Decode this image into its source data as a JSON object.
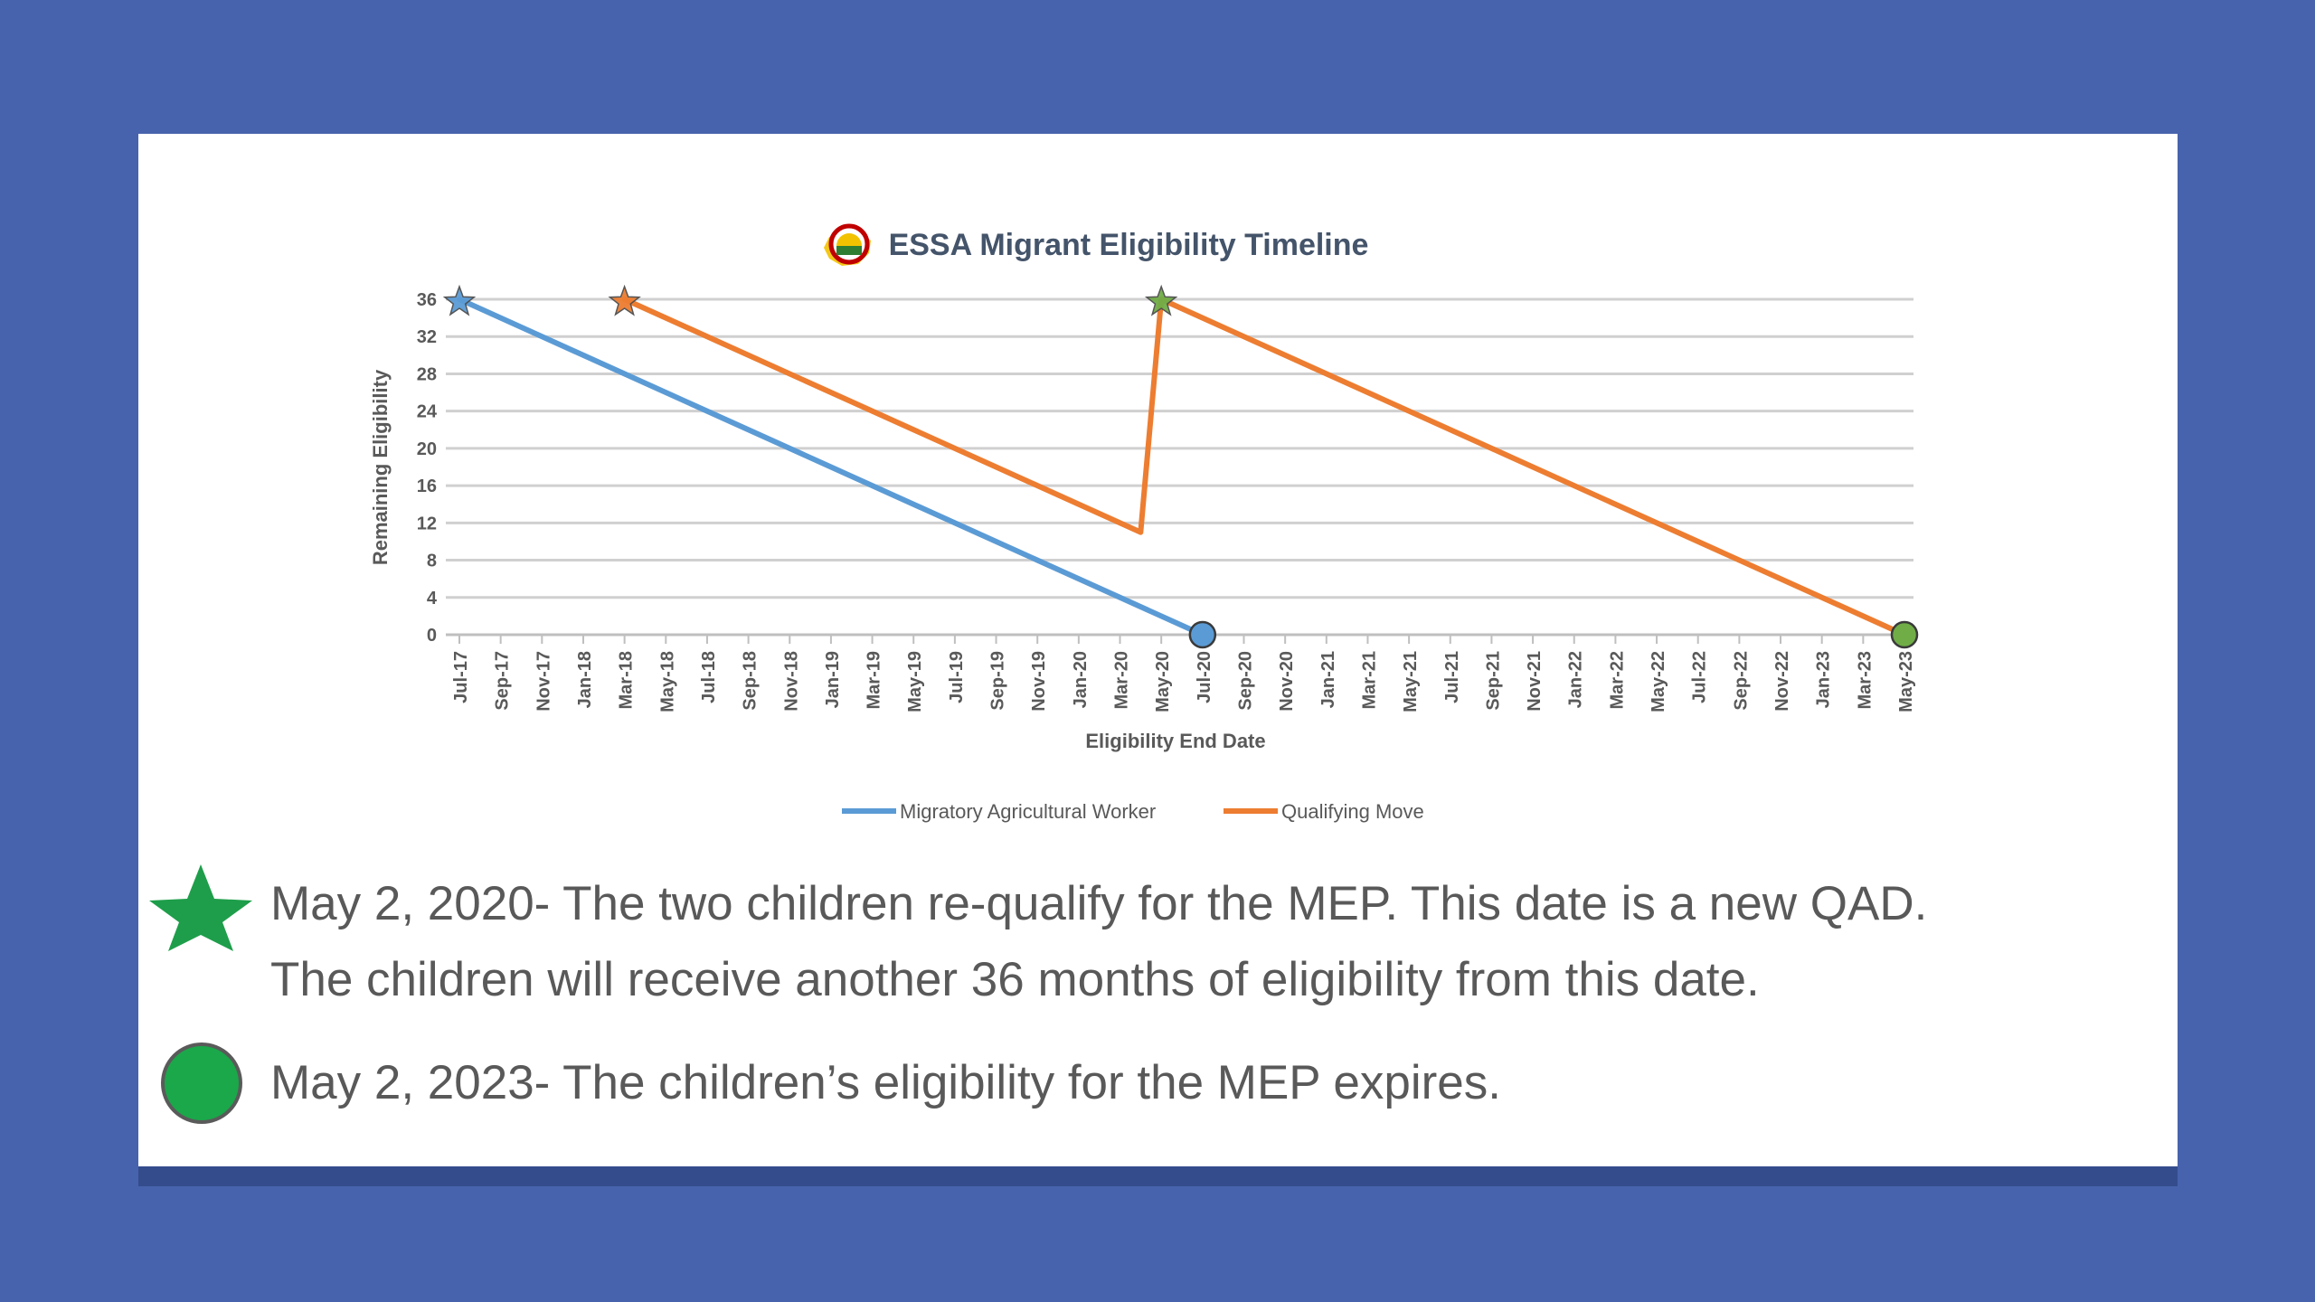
{
  "colors": {
    "background": "#4763ad",
    "slide": "#ffffff",
    "migratory_series": "#5b9bd5",
    "move_series": "#ed7d31",
    "start_star_blue": "#5b9bd5",
    "start_star_orange": "#ed7d31",
    "requalify_star": "#70ad47",
    "end_marker_blue": "#5b9bd5",
    "end_marker_green": "#70ad47",
    "legend_star": "#1e9e4a",
    "legend_circle": "#1aa84a",
    "text": "#595959"
  },
  "chart_data": {
    "type": "line",
    "title": "ESSA Migrant Eligibility Timeline",
    "xlabel": "Eligibility End Date",
    "ylabel": "Remaining Eligibility",
    "ylim": [
      0,
      36
    ],
    "yticks": [
      0,
      4,
      8,
      12,
      16,
      20,
      24,
      28,
      32,
      36
    ],
    "grid": true,
    "legend_position": "bottom",
    "categories": [
      "Jul-17",
      "Sep-17",
      "Nov-17",
      "Jan-18",
      "Mar-18",
      "May-18",
      "Jul-18",
      "Sep-18",
      "Nov-18",
      "Jan-19",
      "Mar-19",
      "May-19",
      "Jul-19",
      "Sep-19",
      "Nov-19",
      "Jan-20",
      "Mar-20",
      "May-20",
      "Jul-20",
      "Sep-20",
      "Nov-20",
      "Jan-21",
      "Mar-21",
      "May-21",
      "Jul-21",
      "Sep-21",
      "Nov-21",
      "Jan-22",
      "Mar-22",
      "May-22",
      "Jul-22",
      "Sep-22",
      "Nov-22",
      "Jan-23",
      "Mar-23",
      "May-23"
    ],
    "series": [
      {
        "name": "Migratory Agricultural Worker",
        "points": [
          [
            "2017-07",
            36
          ],
          [
            "2020-07",
            0
          ]
        ]
      },
      {
        "name": "Qualifying Move",
        "points": [
          [
            "2018-03",
            36
          ],
          [
            "2020-04",
            11
          ],
          [
            "2020-05",
            36
          ],
          [
            "2023-05",
            0
          ]
        ]
      }
    ],
    "markers": [
      {
        "series": "Migratory Agricultural Worker",
        "x": "2017-07",
        "y": 36,
        "shape": "star",
        "color": "#5b9bd5"
      },
      {
        "series": "Qualifying Move",
        "x": "2018-03",
        "y": 36,
        "shape": "star",
        "color": "#ed7d31"
      },
      {
        "series": "Qualifying Move",
        "x": "2020-05",
        "y": 36,
        "shape": "star",
        "color": "#70ad47"
      },
      {
        "series": "Migratory Agricultural Worker",
        "x": "2020-07",
        "y": 0,
        "shape": "circle",
        "color": "#5b9bd5"
      },
      {
        "series": "Qualifying Move",
        "x": "2023-05",
        "y": 0,
        "shape": "circle",
        "color": "#70ad47"
      }
    ]
  },
  "notes": [
    {
      "icon": "green-star-icon",
      "lines": [
        "May 2, 2020- The two children re-qualify for the MEP. This date is a new QAD.",
        "The children will receive another 36 months of eligibility from this date."
      ]
    },
    {
      "icon": "green-circle-icon",
      "lines": [
        "May 2, 2023- The children’s eligibility for the MEP expires."
      ]
    }
  ]
}
